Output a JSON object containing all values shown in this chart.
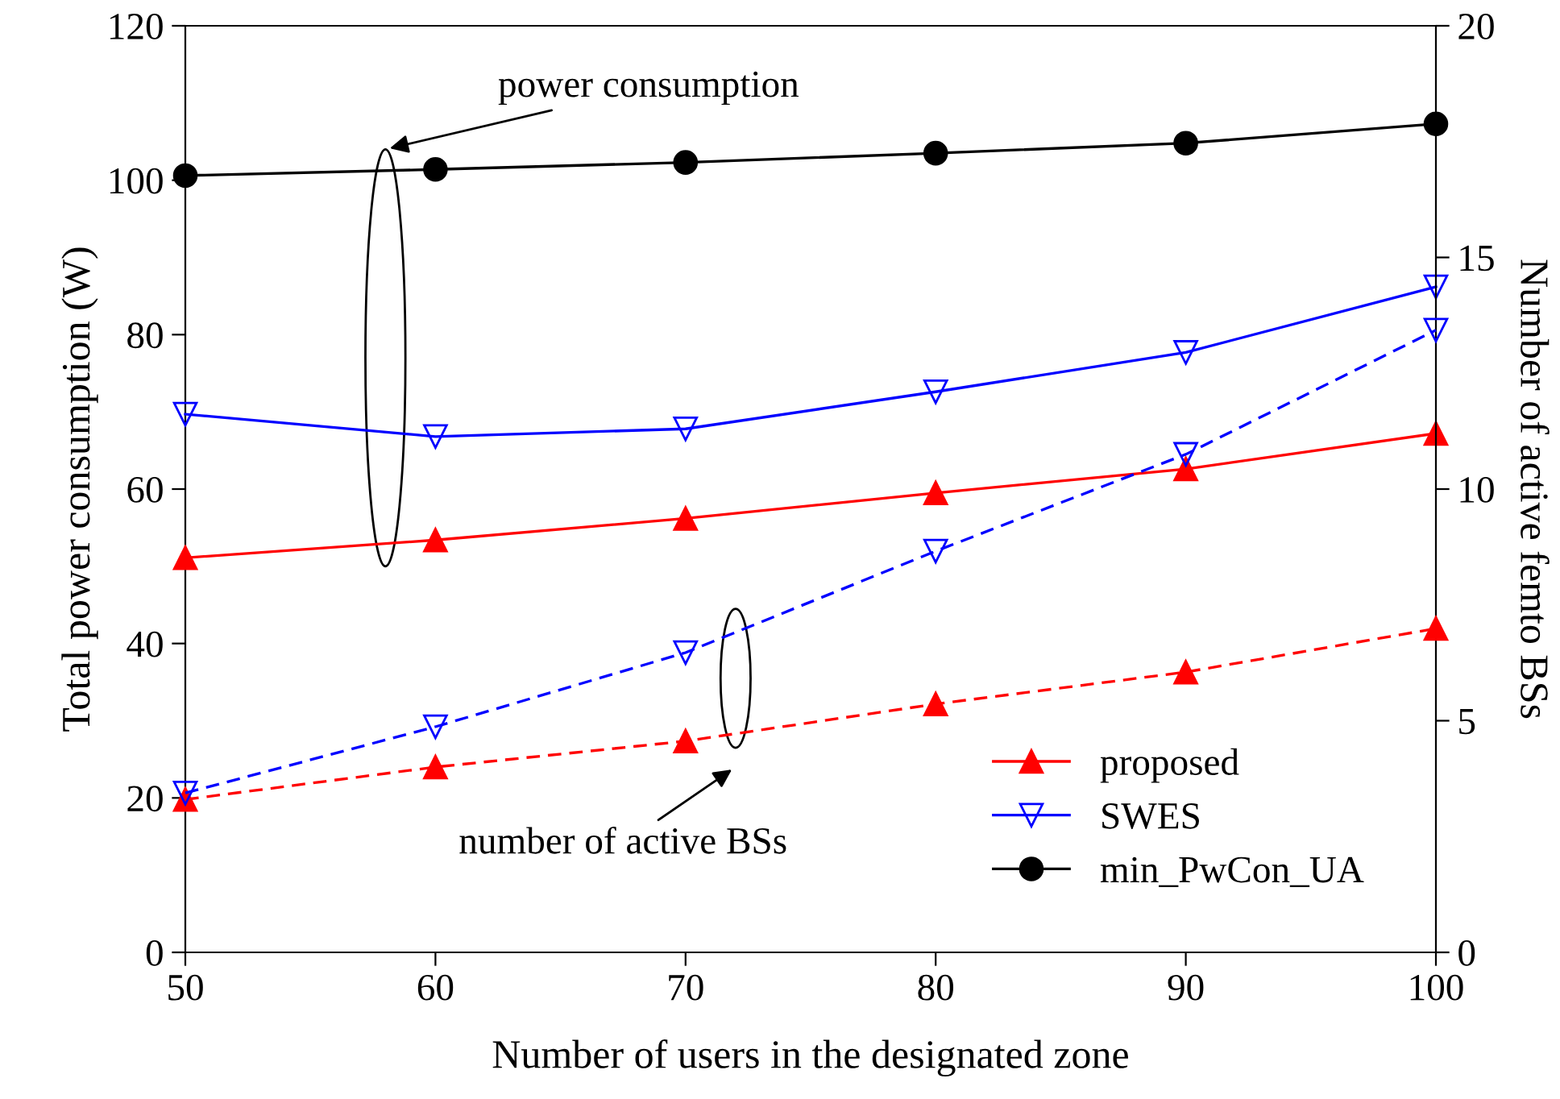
{
  "chart_data": {
    "type": "line",
    "xlabel": "Number of users in the designated zone",
    "ylabel": "Total power consumption (W)",
    "y2label": "Number of active femto BSs",
    "x": [
      50,
      60,
      70,
      80,
      90,
      100
    ],
    "xlim": [
      50,
      100
    ],
    "xticks": [
      50,
      60,
      70,
      80,
      90,
      100
    ],
    "ylim": [
      0,
      120
    ],
    "yticks": [
      0,
      20,
      40,
      60,
      80,
      100,
      120
    ],
    "y2lim": [
      0,
      20
    ],
    "y2ticks": [
      0,
      5,
      10,
      15,
      20
    ],
    "grid": false,
    "legend": "bottom right",
    "series": [
      {
        "name": "proposed",
        "color": "#ff0000",
        "marker": "triangle",
        "line_style": "solid",
        "values": [
          51.1,
          53.4,
          56.2,
          59.5,
          62.6,
          67.2
        ]
      },
      {
        "name": "SWES",
        "color": "#0000ff",
        "marker": "triangle_down",
        "line_style": "solid",
        "values": [
          69.7,
          66.8,
          67.8,
          72.6,
          77.7,
          86.2
        ]
      },
      {
        "name": "min_PwCon_UA",
        "color": "#000000",
        "marker": "circle",
        "line_style": "solid",
        "values": [
          100.6,
          101.4,
          102.3,
          103.5,
          104.8,
          107.3
        ]
      },
      {
        "color": "#ff0000",
        "marker": "triangle",
        "line_style": "dashed",
        "axis": "y2",
        "values": [
          3.3,
          4.0,
          4.56,
          5.36,
          6.05,
          6.99
        ]
      },
      {
        "color": "#0000ff",
        "marker": "triangle_down",
        "line_style": "dashed",
        "axis": "y2",
        "values": [
          3.44,
          4.87,
          6.47,
          8.66,
          10.75,
          13.43
        ]
      }
    ],
    "annotations": [
      "power consumption",
      "number of active BSs"
    ]
  }
}
